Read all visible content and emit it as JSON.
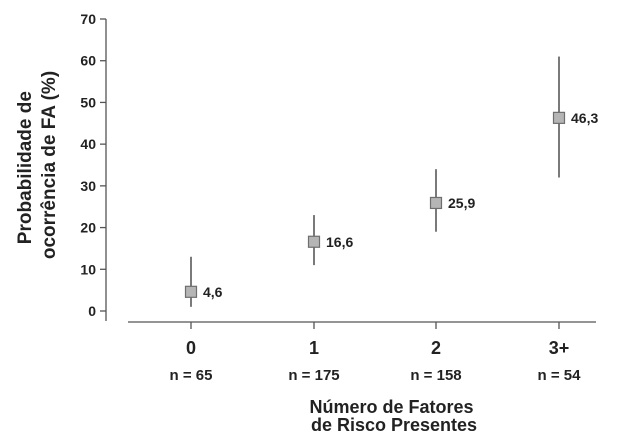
{
  "chart_data": {
    "type": "scatter",
    "categories": [
      "0",
      "1",
      "2",
      "3+"
    ],
    "n_labels": [
      "n = 65",
      "n = 175",
      "n = 158",
      "n = 54"
    ],
    "values": [
      4.6,
      16.6,
      25.9,
      46.3
    ],
    "value_labels": [
      "4,6",
      "16,6",
      "25,9",
      "46,3"
    ],
    "error_low": [
      1,
      11,
      19,
      32
    ],
    "error_high": [
      13,
      23,
      34,
      61
    ],
    "ylabel_line1": "Probabilidade de",
    "ylabel_line2": "ocorrência de FA (%)",
    "xlabel_line1": "Número de Fatores",
    "xlabel_line2": "de Risco Presentes",
    "ylim": [
      0,
      70
    ],
    "yticks": [
      "0",
      "10",
      "20",
      "30",
      "40",
      "50",
      "60",
      "70"
    ],
    "grid": false,
    "marker_color": "#b5b5b5",
    "marker_edge": "#6e6e6e",
    "line_color": "#7a7a7a",
    "axis_color": "#555555"
  }
}
